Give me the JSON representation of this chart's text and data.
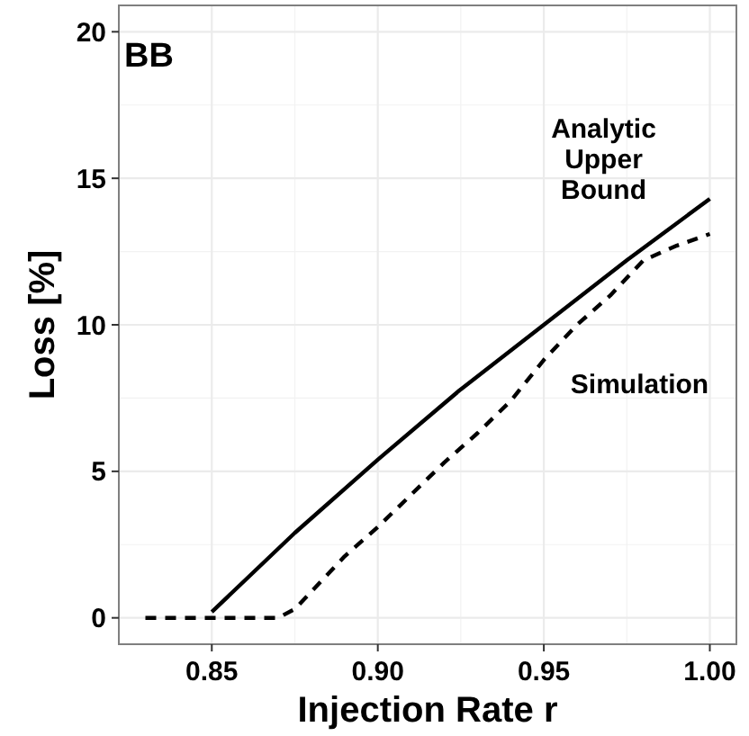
{
  "chart_data": {
    "type": "line",
    "xlabel": "Injection Rate r",
    "ylabel": "Loss [%]",
    "xlim": [
      0.822,
      1.008
    ],
    "xticks": [
      {
        "value": 0.85,
        "label": "0.85"
      },
      {
        "value": 0.9,
        "label": "0.90"
      },
      {
        "value": 0.95,
        "label": "0.95"
      },
      {
        "value": 1,
        "label": "1.00"
      }
    ],
    "ylim": [
      -0.9,
      20.9
    ],
    "yticks": [
      0,
      5,
      10,
      15,
      20
    ],
    "grid": true,
    "series": [
      {
        "name": "Analytic\nUpper\nBound",
        "color": "#000000",
        "line_style": "solid",
        "x": [
          0.85,
          0.875,
          0.9,
          0.925,
          0.95,
          0.975,
          1.0
        ],
        "values": [
          0.2,
          2.9,
          5.4,
          7.8,
          10.0,
          12.2,
          14.3
        ]
      },
      {
        "name": "Simulation",
        "color": "#000000",
        "line_style": "dashed",
        "x": [
          0.83,
          0.87,
          0.875,
          0.88,
          0.89,
          0.9,
          0.91,
          0.92,
          0.93,
          0.94,
          0.95,
          0.96,
          0.97,
          0.98,
          0.99,
          1.0
        ],
        "values": [
          0,
          0,
          0.3,
          0.9,
          2.1,
          3.1,
          4.2,
          5.3,
          6.3,
          7.4,
          8.8,
          10.0,
          11.0,
          12.2,
          12.7,
          13.1
        ]
      }
    ],
    "annotations": [
      "BB"
    ]
  }
}
